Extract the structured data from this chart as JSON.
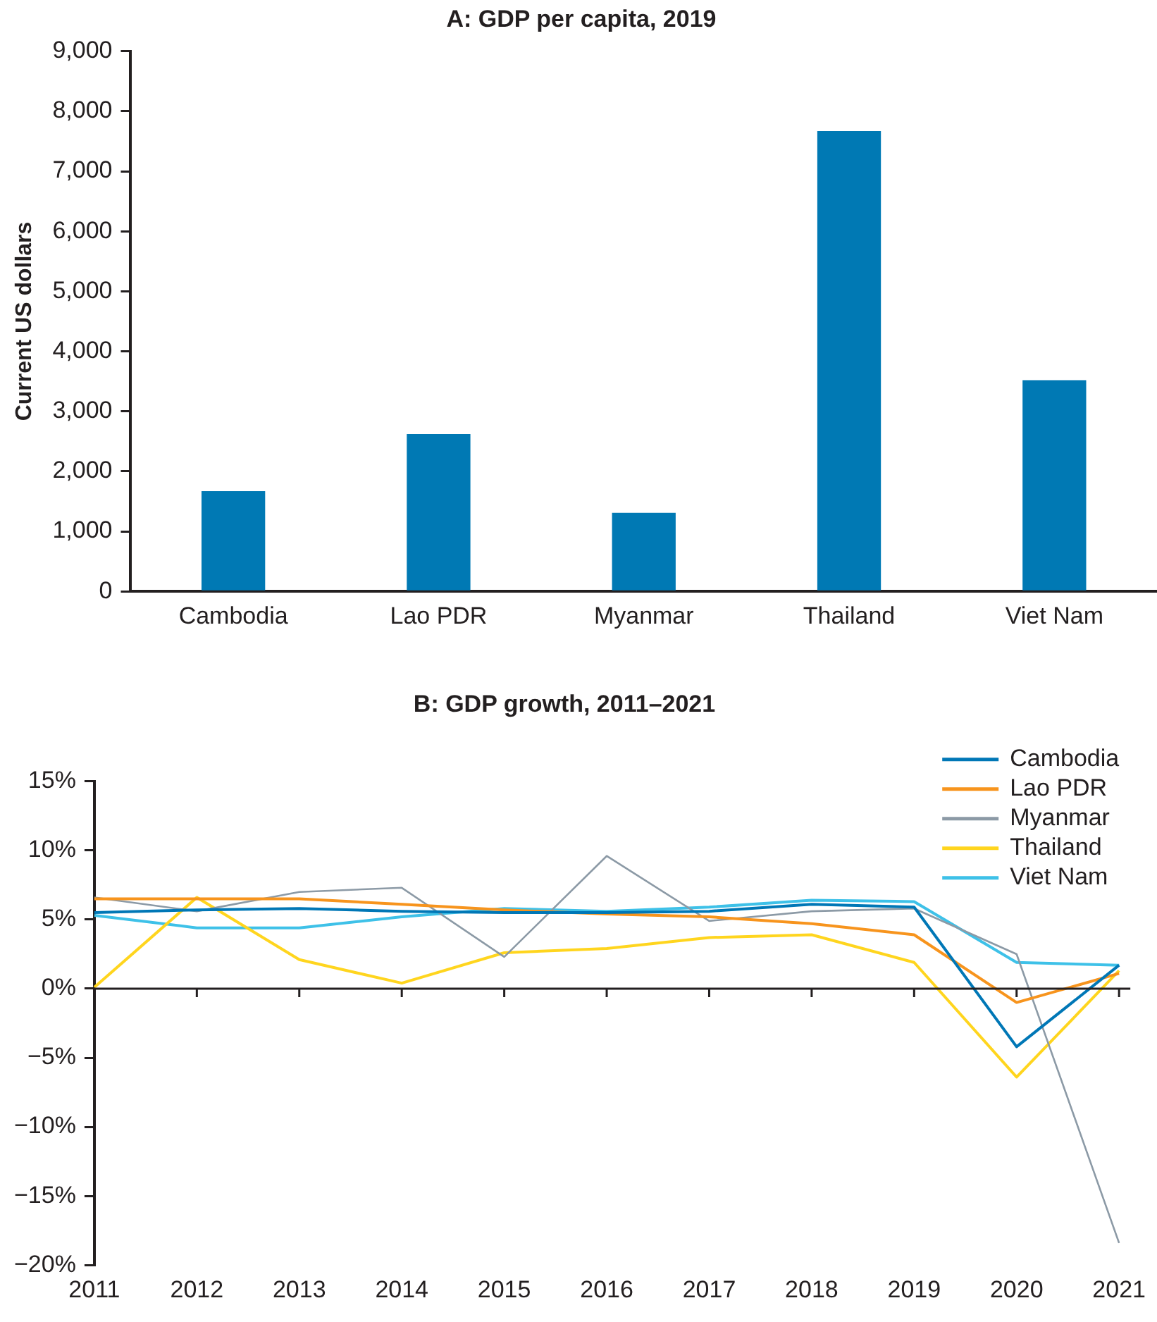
{
  "chart_data": [
    {
      "type": "bar",
      "title": "A: GDP per capita, 2019",
      "ylabel": "Current US dollars",
      "categories": [
        "Cambodia",
        "Lao PDR",
        "Myanmar",
        "Thailand",
        "Viet Nam"
      ],
      "values": [
        1670,
        2620,
        1310,
        7670,
        3520
      ],
      "color": "#0079b4",
      "ylim": [
        0,
        9000
      ],
      "yticks": [
        0,
        {
          "value": 1000,
          "label": "1,000"
        },
        {
          "value": 2000,
          "label": "2,000"
        },
        {
          "value": 3000,
          "label": "3,000"
        },
        {
          "value": 4000,
          "label": "4,000"
        },
        {
          "value": 5000,
          "label": "5,000"
        },
        {
          "value": 6000,
          "label": "6,000"
        },
        {
          "value": 7000,
          "label": "7,000"
        },
        {
          "value": 8000,
          "label": "8,000"
        },
        {
          "value": 9000,
          "label": "9,000"
        }
      ],
      "grid": false,
      "legend": false
    },
    {
      "type": "line",
      "title": "B: GDP growth, 2011–2021",
      "categories": [
        "2011",
        "2012",
        "2013",
        "2014",
        "2015",
        "2016",
        "2017",
        "2018",
        "2019",
        "2020",
        "2021"
      ],
      "series": [
        {
          "name": "Cambodia",
          "color": "#0077b6",
          "values": [
            5.5,
            5.7,
            5.8,
            5.6,
            5.5,
            5.5,
            5.6,
            6.1,
            5.9,
            -4.2,
            1.7
          ]
        },
        {
          "name": "Lao PDR",
          "color": "#f7941d",
          "values": [
            6.5,
            6.5,
            6.5,
            6.1,
            5.7,
            5.4,
            5.2,
            4.7,
            3.9,
            -1.0,
            1.1
          ]
        },
        {
          "name": "Myanmar",
          "color": "#8c9aa6",
          "values": [
            6.6,
            5.6,
            7.0,
            7.3,
            2.3,
            9.6,
            4.9,
            5.6,
            5.8,
            2.5,
            -18.4
          ]
        },
        {
          "name": "Thailand",
          "color": "#ffd51e",
          "values": [
            0.1,
            6.6,
            2.1,
            0.4,
            2.6,
            2.9,
            3.7,
            3.9,
            1.9,
            -6.4,
            1.3
          ]
        },
        {
          "name": "Viet Nam",
          "color": "#3ec1e8",
          "values": [
            5.3,
            4.4,
            4.4,
            5.2,
            5.8,
            5.6,
            5.9,
            6.4,
            6.3,
            1.9,
            1.7
          ]
        }
      ],
      "ylim": [
        -20,
        15
      ],
      "yticks": [
        {
          "value": -20,
          "label": "−20%"
        },
        {
          "value": -15,
          "label": "−15%"
        },
        {
          "value": -10,
          "label": "−10%"
        },
        {
          "value": -5,
          "label": "−5%"
        },
        {
          "value": 0,
          "label": "0%"
        },
        {
          "value": 5,
          "label": "5%"
        },
        {
          "value": 10,
          "label": "10%"
        },
        {
          "value": 15,
          "label": "15%"
        }
      ],
      "ref_lines": [
        {
          "axis": "y",
          "value": 0,
          "color": "#231f20"
        }
      ],
      "grid": false,
      "legend": "top right",
      "marker": "none",
      "line_style": "solid"
    }
  ]
}
